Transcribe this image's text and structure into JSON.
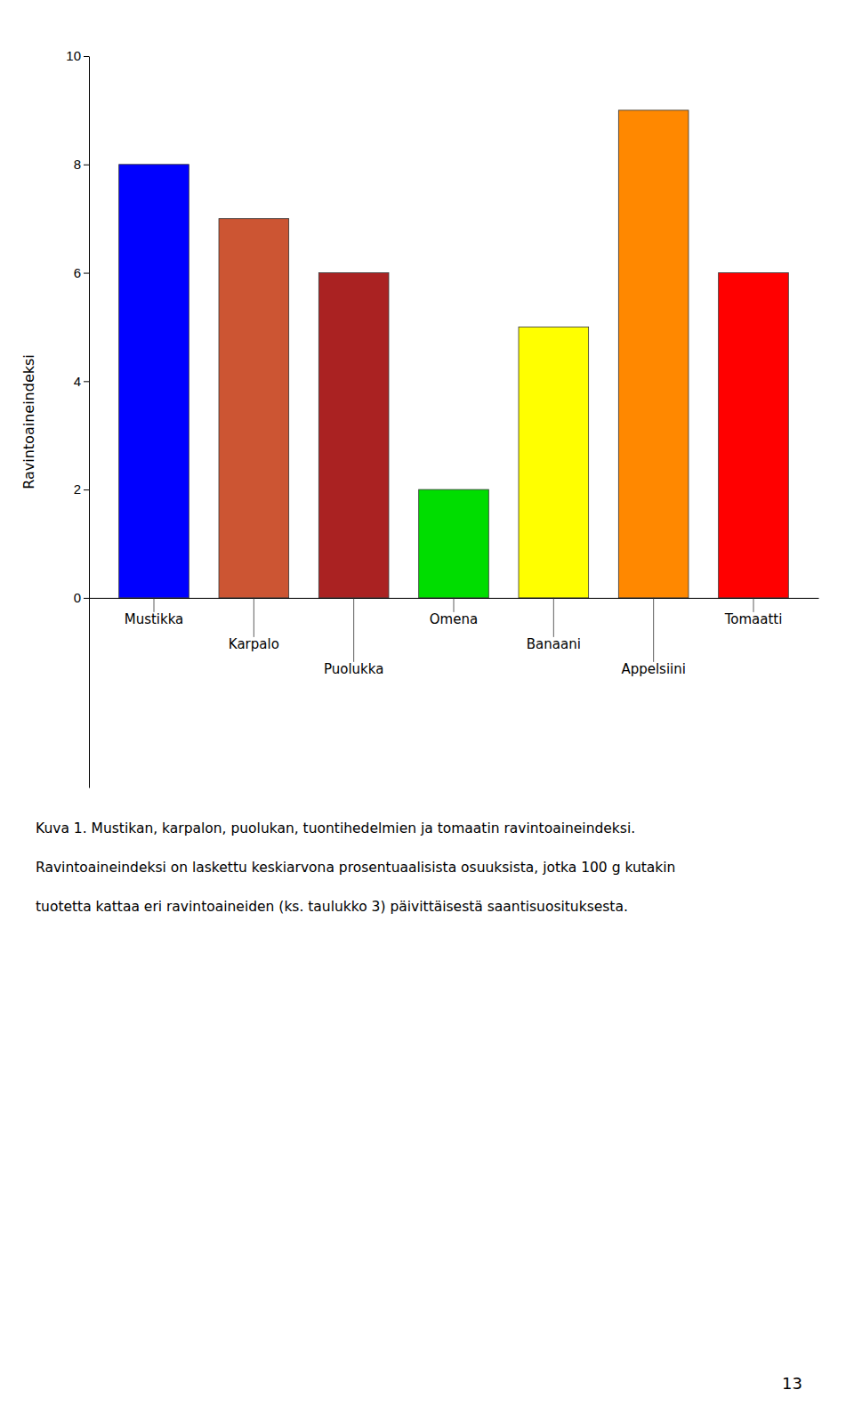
{
  "chart_data": {
    "type": "bar",
    "categories": [
      "Mustikka",
      "Karpalo",
      "Puolukka",
      "Omena",
      "Banaani",
      "Appelsiini",
      "Tomaatti"
    ],
    "values": [
      8,
      7,
      6,
      2,
      5,
      9,
      6
    ],
    "colors": [
      "#0000FF",
      "#CC5533",
      "#AA2222",
      "#00DD00",
      "#FFFF00",
      "#FF8800",
      "#FF0000"
    ],
    "ylabel": "Ravintoaineindeksi",
    "ylim": [
      -3.5,
      10
    ],
    "yticks": [
      0,
      2,
      4,
      6,
      8,
      10
    ],
    "tick_labels": "y",
    "grid": false,
    "annotations": [
      "Kuva 1. Mustikan, karpalon, puolukan, tuontihedelmien ja tomaatin ravintoaineindeksi.",
      "Ravintoaineindeksi on laskettu keskiarvona prosentuaalisista osuuksista, jotka 100 g kutakin",
      "tuotetta kattaa eri ravintoaineiden (ks. taulukko 3) päivittäisestä saantisuosituksesta.",
      "13"
    ]
  }
}
